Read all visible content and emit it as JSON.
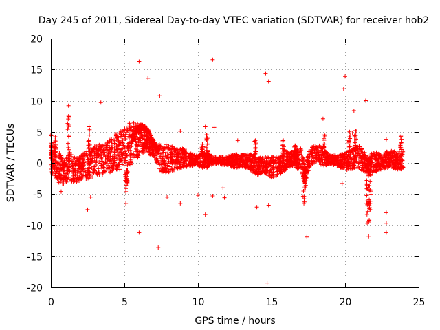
{
  "chart_data": {
    "type": "scatter",
    "title": "Day 245 of 2011, Sidereal Day-to-day VTEC variation (SDTVAR) for receiver hob2",
    "xlabel": "GPS time / hours",
    "ylabel": "SDTVAR / TECUs",
    "xlim": [
      0,
      25
    ],
    "ylim": [
      -20,
      20
    ],
    "xticks": [
      0,
      5,
      10,
      15,
      20,
      25
    ],
    "yticks": [
      -20,
      -15,
      -10,
      -5,
      0,
      5,
      10,
      15,
      20
    ],
    "grid": true,
    "marker": "+",
    "color": "#ff0000",
    "series": [
      {
        "name": "SDTVAR",
        "outliers": [
          [
            6.0,
            16.3
          ],
          [
            6.6,
            13.6
          ],
          [
            7.4,
            10.8
          ],
          [
            11.0,
            16.6
          ],
          [
            14.6,
            14.4
          ],
          [
            14.8,
            13.1
          ],
          [
            1.2,
            9.2
          ],
          [
            3.4,
            9.7
          ],
          [
            20.0,
            13.9
          ],
          [
            19.9,
            11.9
          ],
          [
            21.4,
            10.0
          ],
          [
            20.6,
            8.4
          ],
          [
            18.5,
            7.1
          ],
          [
            0.7,
            -4.6
          ],
          [
            2.5,
            -7.5
          ],
          [
            2.7,
            -5.5
          ],
          [
            6.0,
            -11.2
          ],
          [
            7.3,
            -13.6
          ],
          [
            7.9,
            -5.5
          ],
          [
            8.8,
            -6.5
          ],
          [
            10.5,
            -8.3
          ],
          [
            11.0,
            -5.3
          ],
          [
            11.8,
            -5.6
          ],
          [
            11.7,
            -4.0
          ],
          [
            14.0,
            -7.1
          ],
          [
            14.7,
            -19.3
          ],
          [
            14.8,
            -6.8
          ],
          [
            17.4,
            -11.9
          ],
          [
            21.6,
            -11.8
          ],
          [
            22.8,
            -9.7
          ],
          [
            22.8,
            -11.2
          ],
          [
            22.8,
            -8.0
          ],
          [
            10.0,
            -5.2
          ],
          [
            10.5,
            5.8
          ],
          [
            11.1,
            5.7
          ],
          [
            8.8,
            5.1
          ],
          [
            12.7,
            3.6
          ],
          [
            19.8,
            -3.3
          ],
          [
            20.5,
            4.8
          ],
          [
            22.8,
            3.8
          ]
        ],
        "dense_spikes": [
          [
            1.2,
            7.5
          ],
          [
            2.6,
            5.8
          ],
          [
            5.1,
            -6.5
          ],
          [
            5.2,
            -3.2
          ],
          [
            17.2,
            -6.5
          ],
          [
            17.3,
            -4.0
          ],
          [
            21.5,
            -9.7
          ],
          [
            21.6,
            -9.5
          ],
          [
            21.7,
            -7.5
          ],
          [
            20.3,
            5.0
          ],
          [
            20.7,
            5.2
          ],
          [
            23.8,
            4.3
          ],
          [
            0.0,
            4.5
          ],
          [
            0.3,
            4.2
          ],
          [
            13.9,
            3.6
          ],
          [
            15.8,
            3.6
          ],
          [
            18.6,
            4.5
          ],
          [
            16.6,
            2.8
          ],
          [
            10.3,
            3.0
          ],
          [
            10.6,
            4.5
          ]
        ]
      }
    ]
  }
}
